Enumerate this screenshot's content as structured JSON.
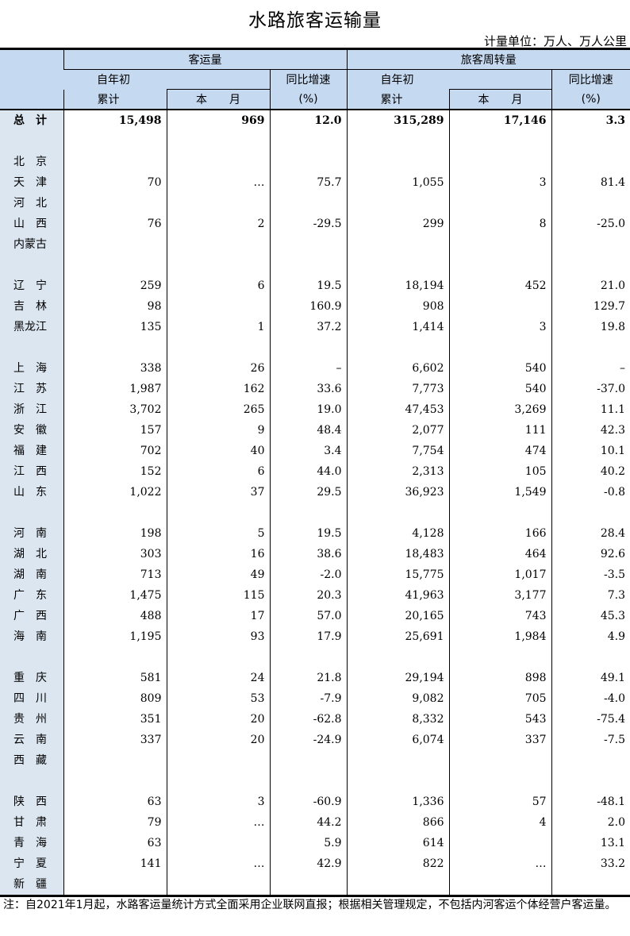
{
  "title": "水路旅客运输量",
  "unit": "计量单位：万人、万人公里",
  "header": {
    "group1": "客运量",
    "group2": "旅客周转量",
    "ytd_top": "自年初",
    "ytd_bottom": "累计",
    "month": "本　　月",
    "yoy_top": "同比增速",
    "yoy_bottom": "(%)"
  },
  "rows": [
    {
      "name": "总　计",
      "v": [
        "15,498",
        "969",
        "12.0",
        "315,289",
        "17,146",
        "3.3"
      ]
    },
    {
      "name": "",
      "v": [
        "",
        "",
        "",
        "",
        "",
        ""
      ]
    },
    {
      "name": "北　京",
      "v": [
        "",
        "",
        "",
        "",
        "",
        ""
      ]
    },
    {
      "name": "天　津",
      "v": [
        "70",
        "…",
        "75.7",
        "1,055",
        "3",
        "81.4"
      ]
    },
    {
      "name": "河　北",
      "v": [
        "",
        "",
        "",
        "",
        "",
        ""
      ]
    },
    {
      "name": "山　西",
      "v": [
        "76",
        "2",
        "-29.5",
        "299",
        "8",
        "-25.0"
      ]
    },
    {
      "name": "内蒙古",
      "v": [
        "",
        "",
        "",
        "",
        "",
        ""
      ]
    },
    {
      "name": "",
      "v": [
        "",
        "",
        "",
        "",
        "",
        ""
      ]
    },
    {
      "name": "辽　宁",
      "v": [
        "259",
        "6",
        "19.5",
        "18,194",
        "452",
        "21.0"
      ]
    },
    {
      "name": "吉　林",
      "v": [
        "98",
        "",
        "160.9",
        "908",
        "",
        "129.7"
      ]
    },
    {
      "name": "黑龙江",
      "v": [
        "135",
        "1",
        "37.2",
        "1,414",
        "3",
        "19.8"
      ]
    },
    {
      "name": "",
      "v": [
        "",
        "",
        "",
        "",
        "",
        ""
      ]
    },
    {
      "name": "上　海",
      "v": [
        "338",
        "26",
        "–",
        "6,602",
        "540",
        "–"
      ]
    },
    {
      "name": "江　苏",
      "v": [
        "1,987",
        "162",
        "33.6",
        "7,773",
        "540",
        "-37.0"
      ]
    },
    {
      "name": "浙　江",
      "v": [
        "3,702",
        "265",
        "19.0",
        "47,453",
        "3,269",
        "11.1"
      ]
    },
    {
      "name": "安　徽",
      "v": [
        "157",
        "9",
        "48.4",
        "2,077",
        "111",
        "42.3"
      ]
    },
    {
      "name": "福　建",
      "v": [
        "702",
        "40",
        "3.4",
        "7,754",
        "474",
        "10.1"
      ]
    },
    {
      "name": "江　西",
      "v": [
        "152",
        "6",
        "44.0",
        "2,313",
        "105",
        "40.2"
      ]
    },
    {
      "name": "山　东",
      "v": [
        "1,022",
        "37",
        "29.5",
        "36,923",
        "1,549",
        "-0.8"
      ]
    },
    {
      "name": "",
      "v": [
        "",
        "",
        "",
        "",
        "",
        ""
      ]
    },
    {
      "name": "河　南",
      "v": [
        "198",
        "5",
        "19.5",
        "4,128",
        "166",
        "28.4"
      ]
    },
    {
      "name": "湖　北",
      "v": [
        "303",
        "16",
        "38.6",
        "18,483",
        "464",
        "92.6"
      ]
    },
    {
      "name": "湖　南",
      "v": [
        "713",
        "49",
        "-2.0",
        "15,775",
        "1,017",
        "-3.5"
      ]
    },
    {
      "name": "广　东",
      "v": [
        "1,475",
        "115",
        "20.3",
        "41,963",
        "3,177",
        "7.3"
      ]
    },
    {
      "name": "广　西",
      "v": [
        "488",
        "17",
        "57.0",
        "20,165",
        "743",
        "45.3"
      ]
    },
    {
      "name": "海　南",
      "v": [
        "1,195",
        "93",
        "17.9",
        "25,691",
        "1,984",
        "4.9"
      ]
    },
    {
      "name": "",
      "v": [
        "",
        "",
        "",
        "",
        "",
        ""
      ]
    },
    {
      "name": "重　庆",
      "v": [
        "581",
        "24",
        "21.8",
        "29,194",
        "898",
        "49.1"
      ]
    },
    {
      "name": "四　川",
      "v": [
        "809",
        "53",
        "-7.9",
        "9,082",
        "705",
        "-4.0"
      ]
    },
    {
      "name": "贵　州",
      "v": [
        "351",
        "20",
        "-62.8",
        "8,332",
        "543",
        "-75.4"
      ]
    },
    {
      "name": "云　南",
      "v": [
        "337",
        "20",
        "-24.9",
        "6,074",
        "337",
        "-7.5"
      ]
    },
    {
      "name": "西　藏",
      "v": [
        "",
        "",
        "",
        "",
        "",
        ""
      ]
    },
    {
      "name": "",
      "v": [
        "",
        "",
        "",
        "",
        "",
        ""
      ]
    },
    {
      "name": "陕　西",
      "v": [
        "63",
        "3",
        "-60.9",
        "1,336",
        "57",
        "-48.1"
      ]
    },
    {
      "name": "甘　肃",
      "v": [
        "79",
        "…",
        "44.2",
        "866",
        "4",
        "2.0"
      ]
    },
    {
      "name": "青　海",
      "v": [
        "63",
        "",
        "5.9",
        "614",
        "",
        "13.1"
      ]
    },
    {
      "name": "宁　夏",
      "v": [
        "141",
        "…",
        "42.9",
        "822",
        "…",
        "33.2"
      ]
    },
    {
      "name": "新　疆",
      "v": [
        "",
        "",
        "",
        "",
        "",
        ""
      ]
    }
  ],
  "note": "注：自2021年1月起，水路客运量统计方式全面采用企业联网直报；根据相关管理规定，不包括内河客运个体经营户客运量。"
}
